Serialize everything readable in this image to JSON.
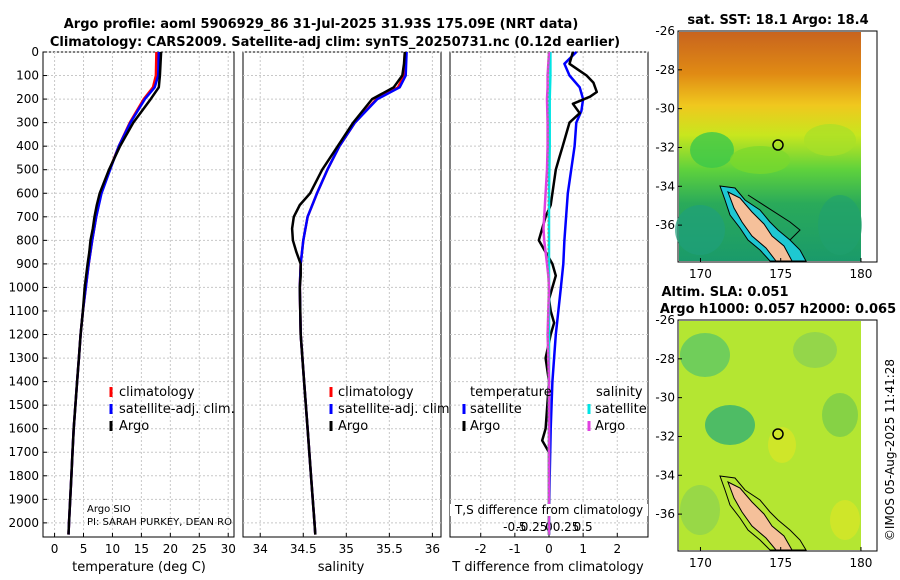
{
  "title_line1": "Argo profile: aoml 5906929_86 31-Jul-2025 31.93S 175.09E (NRT data)",
  "title_line2": "Climatology: CARS2009. Satellite-adj clim: synTS_20250731.nc (0.12d earlier)",
  "credit_line1": "Argo SIO",
  "credit_line2": "PI: SARAH PURKEY, DEAN RO",
  "timestamp": "©IMOS 05-Aug-2025 11:41:28",
  "colors": {
    "climatology": "#ff0000",
    "satellite": "#0000ff",
    "argo": "#000000",
    "sat_diff_s": "#00e5e5",
    "argo_diff_s": "#e040e0"
  },
  "chart_data": [
    {
      "type": "line",
      "title": "",
      "xlabel": "temperature (deg C)",
      "ylabel": "",
      "xlim": [
        -2,
        31
      ],
      "ylim": [
        2060,
        0
      ],
      "xticks": [
        0,
        5,
        10,
        15,
        20,
        25,
        30
      ],
      "xtick_labels": [
        "0",
        "5",
        "10",
        "15",
        "20",
        "25",
        "30"
      ],
      "yticks": [
        0,
        100,
        200,
        300,
        400,
        500,
        600,
        700,
        800,
        900,
        1000,
        1100,
        1200,
        1300,
        1400,
        1500,
        1600,
        1700,
        1800,
        1900,
        2000
      ],
      "ytick_labels": [
        "0",
        "100",
        "200",
        "300",
        "400",
        "500",
        "600",
        "700",
        "800",
        "900",
        "1000",
        "1100",
        "1200",
        "1300",
        "1400",
        "1500",
        "1600",
        "1700",
        "1800",
        "1900",
        "2000"
      ],
      "legend": [
        "climatology",
        "satellite-adj. clim.",
        "Argo"
      ],
      "series": [
        {
          "name": "climatology",
          "depth": [
            0,
            100,
            150,
            200,
            300,
            400,
            500,
            600,
            700,
            800,
            900,
            1000,
            1100,
            1200,
            1300,
            1400,
            1500,
            1600,
            1700,
            1800,
            1900,
            2000,
            2050
          ],
          "values": [
            17.6,
            17.5,
            17.0,
            15.4,
            13.0,
            11.1,
            9.5,
            8.0,
            7.2,
            6.5,
            5.9,
            5.4,
            4.9,
            4.5,
            4.2,
            3.9,
            3.6,
            3.3,
            3.1,
            2.9,
            2.7,
            2.5,
            2.4
          ]
        },
        {
          "name": "satellite-adj. clim.",
          "depth": [
            0,
            100,
            150,
            200,
            300,
            400,
            500,
            600,
            700,
            800,
            900,
            1000,
            1100,
            1200,
            1300,
            1400,
            1500,
            1600,
            1700,
            1800,
            1900,
            2000,
            2050
          ],
          "values": [
            18.0,
            17.9,
            17.3,
            15.6,
            13.1,
            11.1,
            9.6,
            8.1,
            7.2,
            6.5,
            5.9,
            5.4,
            4.9,
            4.5,
            4.2,
            3.9,
            3.6,
            3.3,
            3.1,
            2.9,
            2.7,
            2.5,
            2.4
          ]
        },
        {
          "name": "Argo",
          "depth": [
            0,
            50,
            100,
            150,
            200,
            300,
            400,
            500,
            600,
            650,
            700,
            750,
            800,
            850,
            900,
            1000,
            1100,
            1200,
            1300,
            1400,
            1500,
            1600,
            1700,
            1800,
            1900,
            2000,
            2050
          ],
          "values": [
            18.4,
            18.3,
            18.2,
            18.0,
            16.6,
            13.6,
            11.3,
            9.4,
            7.8,
            7.3,
            6.9,
            6.6,
            6.2,
            6.0,
            5.7,
            5.2,
            4.9,
            4.5,
            4.2,
            3.9,
            3.6,
            3.3,
            3.1,
            2.9,
            2.7,
            2.5,
            2.4
          ]
        }
      ]
    },
    {
      "type": "line",
      "xlabel": "salinity",
      "xlim": [
        33.8,
        36.1
      ],
      "ylim": [
        2060,
        0
      ],
      "xticks": [
        34,
        34.5,
        35,
        35.5,
        36
      ],
      "xtick_labels": [
        "34",
        "34.5",
        "35",
        "35.5",
        "36"
      ],
      "legend": [
        "climatology",
        "satellite-adj. clim.",
        "Argo"
      ],
      "series": [
        {
          "name": "climatology",
          "depth": [
            0,
            100,
            150,
            200,
            300,
            400,
            500,
            600,
            700,
            800,
            900,
            1000,
            1200,
            1400,
            1600,
            1800,
            2000,
            2050
          ],
          "values": [
            35.68,
            35.67,
            35.6,
            35.35,
            35.1,
            34.92,
            34.78,
            34.66,
            34.55,
            34.5,
            34.47,
            34.46,
            34.47,
            34.51,
            34.55,
            34.59,
            34.63,
            34.64
          ]
        },
        {
          "name": "satellite-adj. clim.",
          "depth": [
            0,
            100,
            150,
            200,
            300,
            400,
            500,
            600,
            700,
            800,
            900,
            1000,
            1200,
            1400,
            1600,
            1800,
            2000,
            2050
          ],
          "values": [
            35.7,
            35.69,
            35.62,
            35.36,
            35.1,
            34.92,
            34.78,
            34.66,
            34.55,
            34.5,
            34.47,
            34.46,
            34.47,
            34.51,
            34.55,
            34.59,
            34.63,
            34.64
          ]
        },
        {
          "name": "Argo",
          "depth": [
            0,
            50,
            100,
            150,
            200,
            300,
            400,
            500,
            600,
            650,
            700,
            750,
            800,
            850,
            900,
            950,
            1000,
            1200,
            1400,
            1600,
            1800,
            2000,
            2050
          ],
          "values": [
            35.68,
            35.67,
            35.65,
            35.55,
            35.3,
            35.08,
            34.9,
            34.72,
            34.58,
            34.46,
            34.39,
            34.37,
            34.38,
            34.42,
            34.47,
            34.47,
            34.46,
            34.47,
            34.51,
            34.55,
            34.59,
            34.63,
            34.64
          ]
        }
      ]
    },
    {
      "type": "line",
      "xlabel": "T difference from climatology",
      "inner_label": "T,S difference from climatology",
      "xlim": [
        -2.9,
        2.9
      ],
      "ylim": [
        2060,
        0
      ],
      "xticks": [
        -2,
        -1,
        0,
        1,
        2
      ],
      "xtick_labels": [
        "-2",
        "-1",
        "0",
        "1",
        "2"
      ],
      "secondary_xticks": [
        -0.5,
        -0.25,
        0,
        0.25,
        0.5
      ],
      "secondary_xtick_labels": [
        "-0.5",
        "-0.25",
        "0",
        "0.25",
        "0.5"
      ],
      "legend_temperature_title": "temperature",
      "legend_salinity_title": "salinity",
      "legend_temperature": [
        "satellite",
        "Argo"
      ],
      "legend_salinity": [
        "satellite",
        "Argo"
      ],
      "series": [
        {
          "name": "T satellite",
          "depth": [
            0,
            50,
            100,
            150,
            200,
            250,
            300,
            400,
            500,
            600,
            700,
            800,
            900,
            1000,
            1200,
            1400,
            1600,
            1800,
            2000,
            2050
          ],
          "values": [
            0.8,
            0.45,
            0.6,
            0.9,
            1.0,
            0.95,
            0.8,
            0.75,
            0.65,
            0.55,
            0.5,
            0.45,
            0.42,
            0.35,
            0.2,
            0.1,
            0.05,
            0.02,
            0.0,
            0.0
          ]
        },
        {
          "name": "T Argo",
          "depth": [
            0,
            50,
            80,
            100,
            130,
            170,
            190,
            220,
            260,
            300,
            350,
            400,
            450,
            500,
            550,
            600,
            650,
            700,
            750,
            800,
            850,
            900,
            950,
            1000,
            1050,
            1100,
            1150,
            1200,
            1300,
            1400,
            1500,
            1600,
            1650,
            1700,
            1800,
            1900,
            2000,
            2050
          ],
          "values": [
            0.7,
            0.6,
            0.9,
            1.1,
            1.3,
            1.4,
            1.2,
            0.7,
            0.9,
            0.6,
            0.5,
            0.4,
            0.3,
            0.2,
            0.15,
            0.1,
            0.05,
            -0.1,
            -0.2,
            -0.3,
            -0.1,
            0.1,
            0.2,
            0.1,
            0.0,
            0.05,
            0.15,
            0.05,
            -0.1,
            0.0,
            -0.05,
            -0.1,
            -0.2,
            0.0,
            0.0,
            0.0,
            0.0,
            0.0
          ]
        },
        {
          "name": "S satellite",
          "depth": [
            0,
            100,
            200,
            400,
            600,
            800,
            1000,
            1200,
            1400,
            1600,
            1800,
            2000,
            2050
          ],
          "values": [
            0.02,
            0.02,
            0.01,
            0.01,
            0.0,
            0.0,
            0.0,
            0.0,
            0.0,
            0.0,
            0.0,
            0.0,
            0.0
          ],
          "axis": "salinity"
        },
        {
          "name": "S Argo",
          "depth": [
            0,
            50,
            100,
            150,
            200,
            300,
            400,
            500,
            600,
            650,
            700,
            750,
            800,
            850,
            900,
            950,
            1000,
            1100,
            1200,
            1300,
            1400,
            1600,
            1800,
            2000,
            2050
          ],
          "values": [
            0.0,
            -0.01,
            -0.02,
            -0.02,
            -0.03,
            -0.02,
            -0.02,
            -0.03,
            -0.05,
            -0.06,
            -0.07,
            -0.08,
            -0.07,
            -0.05,
            -0.03,
            -0.01,
            0.0,
            -0.01,
            -0.02,
            -0.01,
            0.0,
            0.0,
            0.0,
            0.0,
            0.0
          ],
          "axis": "salinity"
        }
      ]
    },
    {
      "type": "heatmap",
      "title": "sat. SST: 18.1 Argo: 18.4",
      "xticks": [
        170,
        175,
        180
      ],
      "yticks": [
        -26,
        -28,
        -30,
        -32,
        -34,
        -36
      ],
      "xtick_labels": [
        "170",
        "175",
        "180"
      ],
      "ytick_labels": [
        "-26",
        "-28",
        "-30",
        "-32",
        "-34",
        "-36"
      ],
      "xlim": [
        168.6,
        181.0
      ],
      "ylim": [
        -26.0,
        -37.9
      ],
      "float_position": [
        175.09,
        -31.93
      ]
    },
    {
      "type": "heatmap",
      "title": "Altim. SLA: 0.051",
      "subtitle": "Argo h1000: 0.057 h2000: 0.065",
      "xticks": [
        170,
        175,
        180
      ],
      "yticks": [
        -26,
        -28,
        -30,
        -32,
        -34,
        -36
      ],
      "xtick_labels": [
        "170",
        "175",
        "180"
      ],
      "ytick_labels": [
        "-26",
        "-28",
        "-30",
        "-32",
        "-34",
        "-36"
      ],
      "xlim": [
        168.6,
        181.0
      ],
      "ylim": [
        -26.0,
        -37.9
      ],
      "float_position": [
        175.09,
        -31.93
      ]
    }
  ]
}
